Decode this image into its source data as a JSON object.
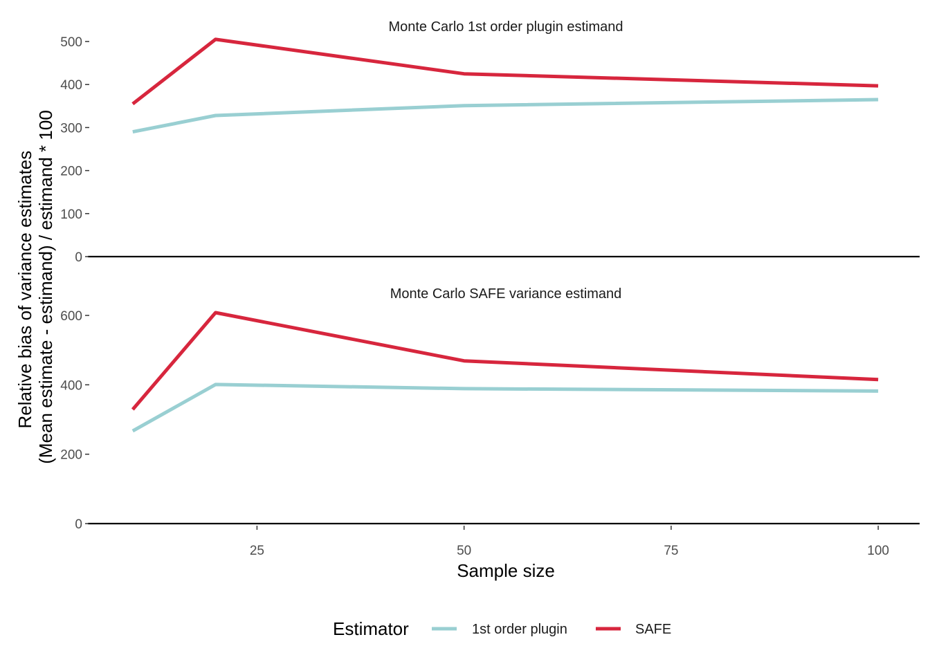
{
  "chart_data": {
    "type": "line",
    "ylabel_lines": [
      "Relative bias of variance estimates",
      "(Mean estimate - estimand) / estimand * 100"
    ],
    "xlabel": "Sample size",
    "x_ticks": [
      25,
      50,
      75,
      100
    ],
    "xlim": [
      5,
      105
    ],
    "legend": {
      "title": "Estimator",
      "position": "bottom"
    },
    "colors": {
      "1st order plugin": "#99cfd2",
      "SAFE": "#d7263d"
    },
    "panels": [
      {
        "title": "Monte Carlo 1st order plugin estimand",
        "ylim": [
          0,
          500
        ],
        "y_ticks": [
          0,
          100,
          200,
          300,
          400,
          500
        ],
        "series": [
          {
            "name": "1st order plugin",
            "x": [
              10,
              20,
              50,
              100
            ],
            "values": [
              290,
              328,
              351,
              365
            ]
          },
          {
            "name": "SAFE",
            "x": [
              10,
              20,
              50,
              100
            ],
            "values": [
              355,
              505,
              425,
              397
            ]
          }
        ]
      },
      {
        "title": "Monte Carlo SAFE variance estimand",
        "ylim": [
          0,
          620
        ],
        "y_ticks": [
          0,
          200,
          400,
          600
        ],
        "series": [
          {
            "name": "1st order plugin",
            "x": [
              10,
              20,
              50,
              100
            ],
            "values": [
              267,
              401,
              389,
              382
            ]
          },
          {
            "name": "SAFE",
            "x": [
              10,
              20,
              50,
              100
            ],
            "values": [
              329,
              608,
              469,
              415
            ]
          }
        ]
      }
    ]
  }
}
